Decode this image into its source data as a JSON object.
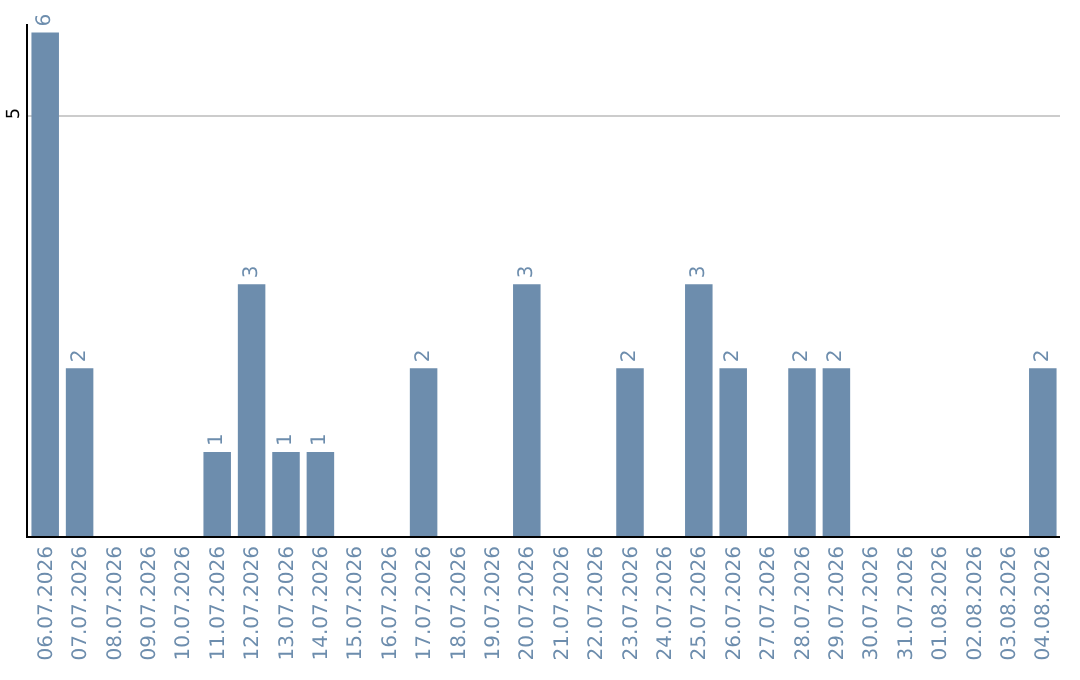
{
  "chart_data": {
    "type": "bar",
    "categories": [
      "06.07.2026",
      "07.07.2026",
      "08.07.2026",
      "09.07.2026",
      "10.07.2026",
      "11.07.2026",
      "12.07.2026",
      "13.07.2026",
      "14.07.2026",
      "15.07.2026",
      "16.07.2026",
      "17.07.2026",
      "18.07.2026",
      "19.07.2026",
      "20.07.2026",
      "21.07.2026",
      "22.07.2026",
      "23.07.2026",
      "24.07.2026",
      "25.07.2026",
      "26.07.2026",
      "27.07.2026",
      "28.07.2026",
      "29.07.2026",
      "30.07.2026",
      "31.07.2026",
      "01.08.2026",
      "02.08.2026",
      "03.08.2026",
      "04.08.2026"
    ],
    "values": [
      6,
      2,
      0,
      0,
      0,
      1,
      3,
      1,
      1,
      0,
      0,
      2,
      0,
      0,
      3,
      0,
      0,
      2,
      0,
      3,
      2,
      0,
      2,
      2,
      0,
      0,
      0,
      0,
      0,
      2
    ],
    "value_labels": [
      "6",
      "2",
      null,
      null,
      null,
      "1",
      "3",
      "1",
      "1",
      null,
      null,
      "2",
      null,
      null,
      "3",
      null,
      null,
      "2",
      null,
      "3",
      "2",
      null,
      "2",
      "2",
      null,
      null,
      null,
      null,
      null,
      "2"
    ],
    "color": "#6d8dad",
    "ylim": [
      0,
      6.1
    ],
    "yticks": [
      5
    ],
    "grid": "y"
  }
}
